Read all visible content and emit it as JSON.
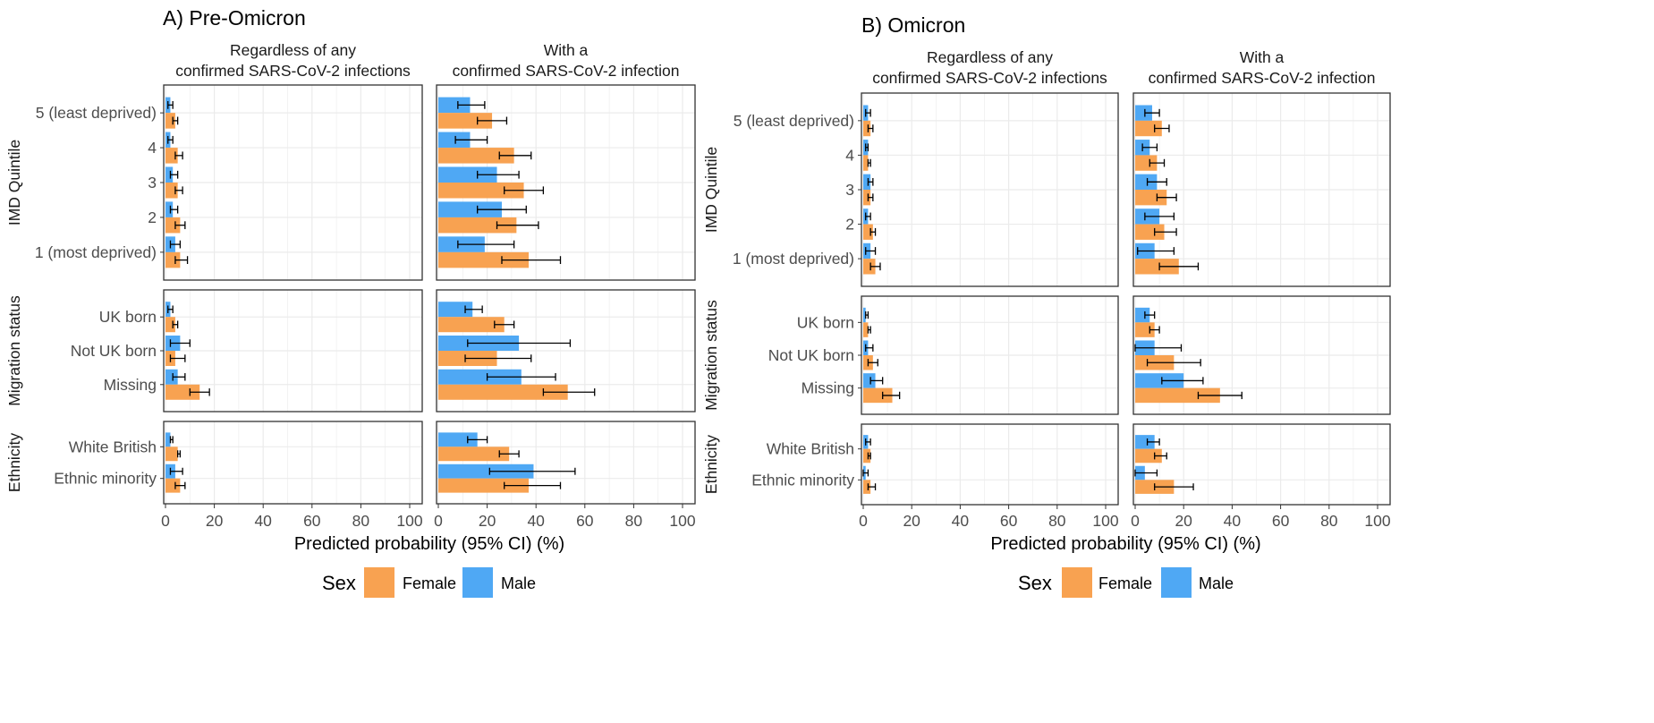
{
  "colors": {
    "female": "#F8A251",
    "male": "#4FA8F4",
    "panel_border": "#333333",
    "grid": "#ebebeb",
    "errorbar": "#000000"
  },
  "legend": {
    "title": "Sex",
    "items": [
      {
        "key": "female",
        "label": "Female"
      },
      {
        "key": "male",
        "label": "Male"
      }
    ]
  },
  "chart_data": [
    {
      "type": "bar",
      "orientation": "horizontal",
      "title": "A) Pre-Omicron",
      "xlabel": "Predicted probability (95% CI) (%)",
      "xlim": [
        0,
        100
      ],
      "xticks": [
        "0",
        "20",
        "40",
        "60",
        "80",
        "100"
      ],
      "grid": true,
      "legend_position": "bottom",
      "columns": [
        "Regardless of any\nconfirmed SARS-CoV-2 infections",
        "With a\nconfirmed SARS-CoV-2 infection"
      ],
      "groups": [
        {
          "name": "IMD Quintile",
          "rows": [
            {
              "label": "5 (least deprived)",
              "values": [
                {
                  "male": [
                    2,
                    1,
                    3
                  ],
                  "female": [
                    4,
                    3,
                    5
                  ]
                },
                {
                  "male": [
                    13,
                    8,
                    19
                  ],
                  "female": [
                    22,
                    16,
                    28
                  ]
                }
              ]
            },
            {
              "label": "4",
              "values": [
                {
                  "male": [
                    2,
                    1,
                    3
                  ],
                  "female": [
                    5,
                    4,
                    7
                  ]
                },
                {
                  "male": [
                    13,
                    7,
                    20
                  ],
                  "female": [
                    31,
                    25,
                    38
                  ]
                }
              ]
            },
            {
              "label": "3",
              "values": [
                {
                  "male": [
                    3,
                    2,
                    5
                  ],
                  "female": [
                    5,
                    4,
                    7
                  ]
                },
                {
                  "male": [
                    24,
                    16,
                    33
                  ],
                  "female": [
                    35,
                    27,
                    43
                  ]
                }
              ]
            },
            {
              "label": "2",
              "values": [
                {
                  "male": [
                    3,
                    2,
                    5
                  ],
                  "female": [
                    6,
                    4,
                    8
                  ]
                },
                {
                  "male": [
                    26,
                    16,
                    36
                  ],
                  "female": [
                    32,
                    24,
                    41
                  ]
                }
              ]
            },
            {
              "label": "1 (most deprived)",
              "values": [
                {
                  "male": [
                    4,
                    2,
                    6
                  ],
                  "female": [
                    6,
                    4,
                    9
                  ]
                },
                {
                  "male": [
                    19,
                    8,
                    31
                  ],
                  "female": [
                    37,
                    26,
                    50
                  ]
                }
              ]
            }
          ]
        },
        {
          "name": "Migration status",
          "rows": [
            {
              "label": "UK born",
              "values": [
                {
                  "male": [
                    2,
                    1,
                    3
                  ],
                  "female": [
                    4,
                    3,
                    5
                  ]
                },
                {
                  "male": [
                    14,
                    11,
                    18
                  ],
                  "female": [
                    27,
                    23,
                    31
                  ]
                }
              ]
            },
            {
              "label": "Not UK born",
              "values": [
                {
                  "male": [
                    6,
                    2,
                    10
                  ],
                  "female": [
                    4,
                    2,
                    8
                  ]
                },
                {
                  "male": [
                    33,
                    12,
                    54
                  ],
                  "female": [
                    24,
                    11,
                    38
                  ]
                }
              ]
            },
            {
              "label": "Missing",
              "values": [
                {
                  "male": [
                    5,
                    3,
                    8
                  ],
                  "female": [
                    14,
                    10,
                    18
                  ]
                },
                {
                  "male": [
                    34,
                    20,
                    48
                  ],
                  "female": [
                    53,
                    43,
                    64
                  ]
                }
              ]
            }
          ]
        },
        {
          "name": "Ethnicity",
          "rows": [
            {
              "label": "White British",
              "values": [
                {
                  "male": [
                    2,
                    2,
                    3
                  ],
                  "female": [
                    5,
                    5,
                    6
                  ]
                },
                {
                  "male": [
                    16,
                    12,
                    20
                  ],
                  "female": [
                    29,
                    25,
                    33
                  ]
                }
              ]
            },
            {
              "label": "Ethnic minority",
              "values": [
                {
                  "male": [
                    4,
                    2,
                    7
                  ],
                  "female": [
                    6,
                    4,
                    8
                  ]
                },
                {
                  "male": [
                    39,
                    21,
                    56
                  ],
                  "female": [
                    37,
                    27,
                    50
                  ]
                }
              ]
            }
          ]
        }
      ]
    },
    {
      "type": "bar",
      "orientation": "horizontal",
      "title": "B) Omicron",
      "xlabel": "Predicted probability (95% CI) (%)",
      "xlim": [
        0,
        100
      ],
      "xticks": [
        "0",
        "20",
        "40",
        "60",
        "80",
        "100"
      ],
      "grid": true,
      "legend_position": "bottom",
      "columns": [
        "Regardless of any\nconfirmed SARS-CoV-2 infections",
        "With a\nconfirmed SARS-CoV-2 infection"
      ],
      "groups": [
        {
          "name": "IMD Quintile",
          "rows": [
            {
              "label": "5 (least deprived)",
              "values": [
                {
                  "male": [
                    2,
                    1,
                    3
                  ],
                  "female": [
                    3,
                    2,
                    4
                  ]
                },
                {
                  "male": [
                    7,
                    4,
                    10
                  ],
                  "female": [
                    11,
                    8,
                    14
                  ]
                }
              ]
            },
            {
              "label": "4",
              "values": [
                {
                  "male": [
                    2,
                    1,
                    2
                  ],
                  "female": [
                    2,
                    2,
                    3
                  ]
                },
                {
                  "male": [
                    6,
                    3,
                    9
                  ],
                  "female": [
                    9,
                    6,
                    12
                  ]
                }
              ]
            },
            {
              "label": "3",
              "values": [
                {
                  "male": [
                    3,
                    2,
                    4
                  ],
                  "female": [
                    3,
                    2,
                    4
                  ]
                },
                {
                  "male": [
                    9,
                    5,
                    13
                  ],
                  "female": [
                    13,
                    9,
                    17
                  ]
                }
              ]
            },
            {
              "label": "2",
              "values": [
                {
                  "male": [
                    2,
                    1,
                    3
                  ],
                  "female": [
                    4,
                    3,
                    5
                  ]
                },
                {
                  "male": [
                    10,
                    4,
                    16
                  ],
                  "female": [
                    12,
                    8,
                    17
                  ]
                }
              ]
            },
            {
              "label": "1 (most deprived)",
              "values": [
                {
                  "male": [
                    3,
                    1,
                    5
                  ],
                  "female": [
                    5,
                    3,
                    7
                  ]
                },
                {
                  "male": [
                    8,
                    1,
                    16
                  ],
                  "female": [
                    18,
                    10,
                    26
                  ]
                }
              ]
            }
          ]
        },
        {
          "name": "Migration status",
          "rows": [
            {
              "label": "UK born",
              "values": [
                {
                  "male": [
                    1,
                    1,
                    2
                  ],
                  "female": [
                    2,
                    2,
                    3
                  ]
                },
                {
                  "male": [
                    6,
                    4,
                    8
                  ],
                  "female": [
                    8,
                    6,
                    10
                  ]
                }
              ]
            },
            {
              "label": "Not UK born",
              "values": [
                {
                  "male": [
                    2,
                    1,
                    4
                  ],
                  "female": [
                    4,
                    2,
                    6
                  ]
                },
                {
                  "male": [
                    8,
                    0,
                    19
                  ],
                  "female": [
                    16,
                    5,
                    27
                  ]
                }
              ]
            },
            {
              "label": "Missing",
              "values": [
                {
                  "male": [
                    5,
                    3,
                    8
                  ],
                  "female": [
                    12,
                    8,
                    15
                  ]
                },
                {
                  "male": [
                    20,
                    11,
                    28
                  ],
                  "female": [
                    35,
                    26,
                    44
                  ]
                }
              ]
            }
          ]
        },
        {
          "name": "Ethnicity",
          "rows": [
            {
              "label": "White British",
              "values": [
                {
                  "male": [
                    2,
                    1,
                    3
                  ],
                  "female": [
                    3,
                    2,
                    3
                  ]
                },
                {
                  "male": [
                    8,
                    5,
                    10
                  ],
                  "female": [
                    11,
                    8,
                    13
                  ]
                }
              ]
            },
            {
              "label": "Ethnic minority",
              "values": [
                {
                  "male": [
                    1,
                    0,
                    2
                  ],
                  "female": [
                    3,
                    2,
                    5
                  ]
                },
                {
                  "male": [
                    4,
                    0,
                    9
                  ],
                  "female": [
                    16,
                    8,
                    24
                  ]
                }
              ]
            }
          ]
        }
      ]
    }
  ]
}
